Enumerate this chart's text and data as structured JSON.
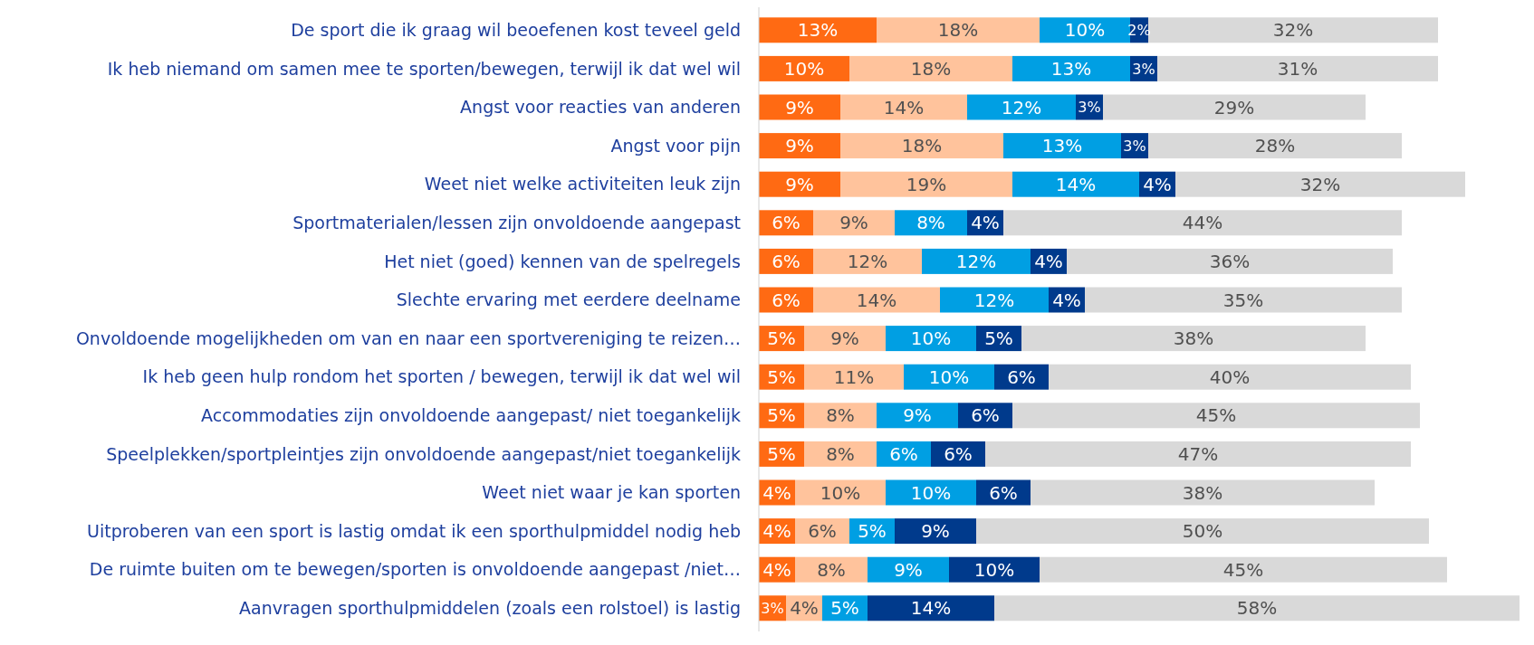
{
  "chart_data": {
    "type": "bar",
    "orientation": "horizontal",
    "stacked": true,
    "tick_labels": "y",
    "categories": [
      "De sport die ik graag wil beoefenen kost teveel geld",
      "Ik heb niemand om samen mee te sporten/bewegen, terwijl ik dat wel wil",
      "Angst voor reacties van anderen",
      "Angst voor pijn",
      "Weet niet welke activiteiten leuk zijn",
      "Sportmaterialen/lessen zijn onvoldoende aangepast",
      "Het niet (goed) kennen van de spelregels",
      "Slechte ervaring met eerdere deelname",
      "Onvoldoende mogelijkheden om van en naar een sportvereniging te reizen…",
      "Ik heb geen hulp rondom het sporten / bewegen, terwijl ik dat wel wil",
      "Accommodaties zijn onvoldoende aangepast/ niet toegankelijk",
      "Speelplekken/sportpleintjes zijn onvoldoende aangepast/niet toegankelijk",
      "Weet niet waar je kan sporten",
      "Uitproberen van een sport is lastig omdat ik een sporthulpmiddel nodig heb",
      "De ruimte buiten om te bewegen/sporten is onvoldoende aangepast /niet…",
      "Aanvragen sporthulpmiddelen (zoals een rolstoel) is lastig"
    ],
    "series": [
      {
        "color": "#ff6a13",
        "values": [
          13,
          10,
          9,
          9,
          9,
          6,
          6,
          6,
          5,
          5,
          5,
          5,
          4,
          4,
          4,
          3
        ],
        "value_labels": [
          "13%",
          "10%",
          "9%",
          "9%",
          "9%",
          "6%",
          "6%",
          "6%",
          "5%",
          "5%",
          "5%",
          "5%",
          "4%",
          "4%",
          "4%",
          "3%"
        ]
      },
      {
        "color": "#ffc39c",
        "values": [
          18,
          18,
          14,
          18,
          19,
          9,
          12,
          14,
          9,
          11,
          8,
          8,
          10,
          6,
          8,
          4
        ],
        "value_labels": [
          "18%",
          "18%",
          "14%",
          "18%",
          "19%",
          "9%",
          "12%",
          "14%",
          "9%",
          "11%",
          "8%",
          "8%",
          "10%",
          "6%",
          "8%",
          "4%"
        ]
      },
      {
        "color": "#009fe3",
        "values": [
          10,
          13,
          12,
          13,
          14,
          8,
          12,
          12,
          10,
          10,
          9,
          6,
          10,
          5,
          9,
          5
        ],
        "value_labels": [
          "10%",
          "13%",
          "12%",
          "13%",
          "14%",
          "8%",
          "12%",
          "12%",
          "10%",
          "10%",
          "9%",
          "6%",
          "10%",
          "5%",
          "9%",
          "5%"
        ]
      },
      {
        "color": "#003a8c",
        "values": [
          2,
          3,
          3,
          3,
          4,
          4,
          4,
          4,
          5,
          6,
          6,
          6,
          6,
          9,
          10,
          14
        ],
        "value_labels": [
          "2%",
          "3%",
          "3%",
          "3%",
          "4%",
          "4%",
          "4%",
          "4%",
          "5%",
          "6%",
          "6%",
          "6%",
          "6%",
          "9%",
          "10%",
          "14%"
        ]
      },
      {
        "color": "#d9d9d9",
        "values": [
          32,
          31,
          29,
          28,
          32,
          44,
          36,
          35,
          38,
          40,
          45,
          47,
          38,
          50,
          45,
          58
        ],
        "value_labels": [
          "32%",
          "31%",
          "29%",
          "28%",
          "32%",
          "44%",
          "36%",
          "35%",
          "38%",
          "40%",
          "45%",
          "47%",
          "38%",
          "50%",
          "45%",
          "58%"
        ]
      }
    ]
  }
}
